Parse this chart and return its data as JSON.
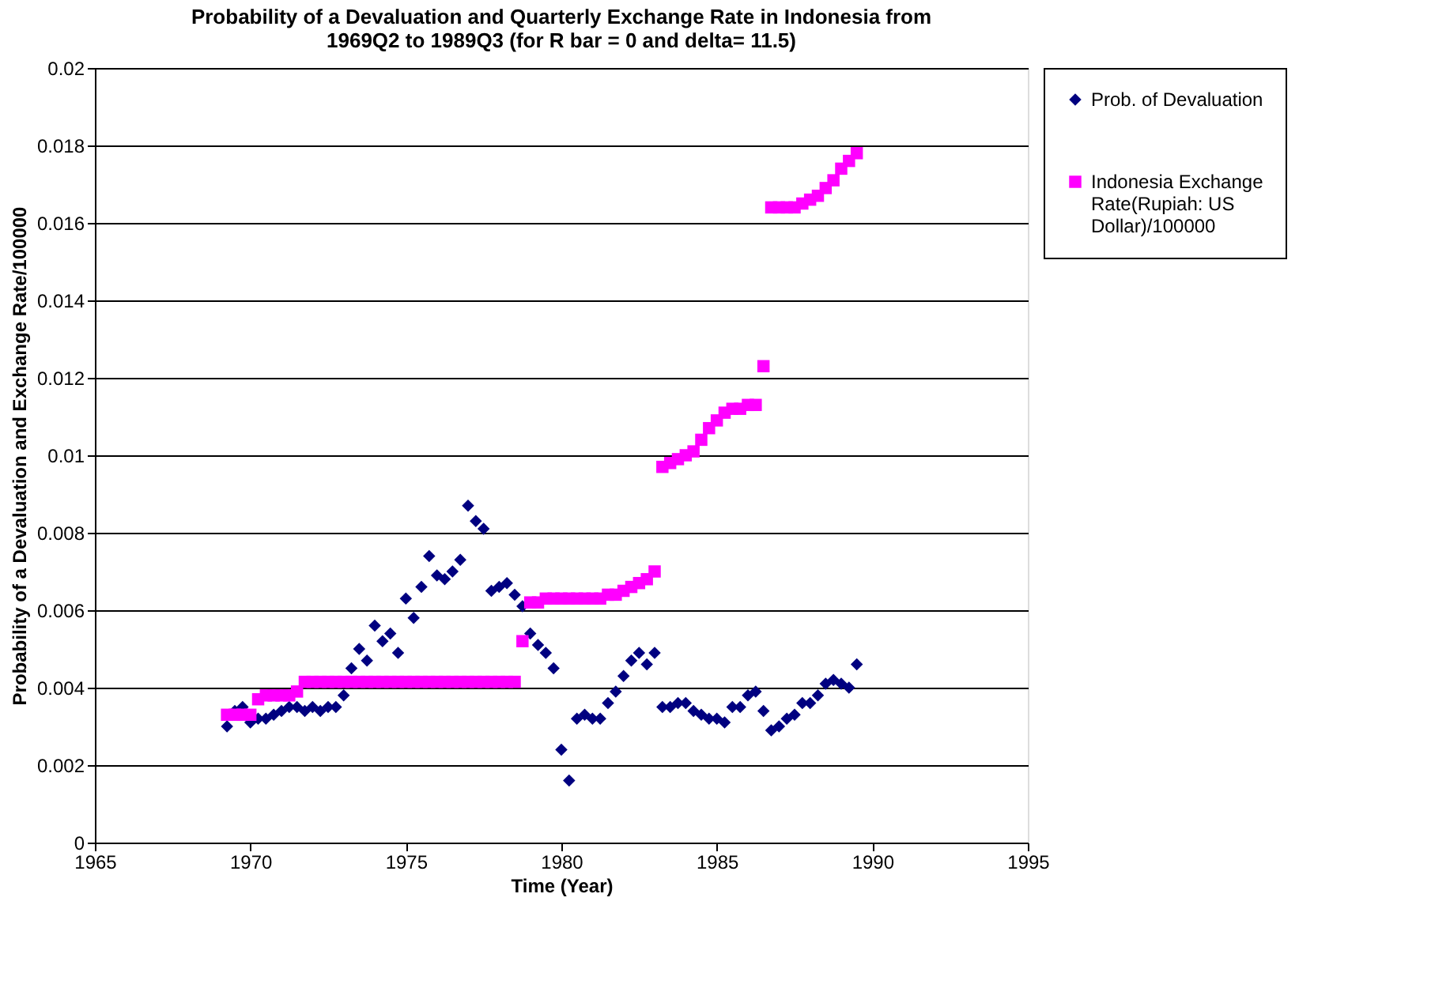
{
  "chart_data": {
    "type": "scatter",
    "title": "Probability of a Devaluation and Quarterly Exchange Rate in Indonesia from 1969Q2 to 1989Q3 (for R bar = 0 and delta= 11.5)",
    "xlabel": "Time (Year)",
    "ylabel": "Probability of a Devaluation and Exchange Rate/100000",
    "x": [
      1969.25,
      1969.5,
      1969.75,
      1970,
      1970.25,
      1970.5,
      1970.75,
      1971,
      1971.25,
      1971.5,
      1971.75,
      1972,
      1972.25,
      1972.5,
      1972.75,
      1973,
      1973.25,
      1973.5,
      1973.75,
      1974,
      1974.25,
      1974.5,
      1974.75,
      1975,
      1975.25,
      1975.5,
      1975.75,
      1976,
      1976.25,
      1976.5,
      1976.75,
      1977,
      1977.25,
      1977.5,
      1977.75,
      1978,
      1978.25,
      1978.5,
      1978.75,
      1979,
      1979.25,
      1979.5,
      1979.75,
      1980,
      1980.25,
      1980.5,
      1980.75,
      1981,
      1981.25,
      1981.5,
      1981.75,
      1982,
      1982.25,
      1982.5,
      1982.75,
      1983,
      1983.25,
      1983.5,
      1983.75,
      1984,
      1984.25,
      1984.5,
      1984.75,
      1985,
      1985.25,
      1985.5,
      1985.75,
      1986,
      1986.25,
      1986.5,
      1986.75,
      1987,
      1987.25,
      1987.5,
      1987.75,
      1988,
      1988.25,
      1988.5,
      1988.75,
      1989,
      1989.25,
      1989.5
    ],
    "series": [
      {
        "name": "Prob. of Devaluation",
        "color": "#000080",
        "marker": "diamond",
        "values": [
          0.003,
          0.0034,
          0.0035,
          0.0031,
          0.0032,
          0.0032,
          0.0033,
          0.0034,
          0.0035,
          0.0035,
          0.0034,
          0.0035,
          0.0034,
          0.0035,
          0.0035,
          0.0038,
          0.0045,
          0.005,
          0.0047,
          0.0056,
          0.0052,
          0.0054,
          0.0049,
          0.0063,
          0.0058,
          0.0066,
          0.0074,
          0.0069,
          0.0068,
          0.007,
          0.0073,
          0.0087,
          0.0083,
          0.0081,
          0.0065,
          0.0066,
          0.0067,
          0.0064,
          0.0061,
          0.0054,
          0.0051,
          0.0049,
          0.0045,
          0.0024,
          0.0016,
          0.0032,
          0.0033,
          0.0032,
          0.0032,
          0.0036,
          0.0039,
          0.0043,
          0.0047,
          0.0049,
          0.0046,
          0.0049,
          0.0035,
          0.0035,
          0.0036,
          0.0036,
          0.0034,
          0.0033,
          0.0032,
          0.0032,
          0.0031,
          0.0035,
          0.0035,
          0.0038,
          0.0039,
          0.0034,
          0.0029,
          0.003,
          0.0032,
          0.0033,
          0.0036,
          0.0036,
          0.0038,
          0.0041,
          0.0042,
          0.0041,
          0.004,
          0.0046
        ]
      },
      {
        "name": "Indonesia Exchange Rate(Rupiah: US Dollar)/100000",
        "color": "#ff00ff",
        "marker": "square",
        "values": [
          0.0033,
          0.0033,
          0.0033,
          0.0033,
          0.0037,
          0.0038,
          0.0038,
          0.0038,
          0.0038,
          0.0039,
          0.00415,
          0.00415,
          0.00415,
          0.00415,
          0.00415,
          0.00415,
          0.00415,
          0.00415,
          0.00415,
          0.00415,
          0.00415,
          0.00415,
          0.00415,
          0.00415,
          0.00415,
          0.00415,
          0.00415,
          0.00415,
          0.00415,
          0.00415,
          0.00415,
          0.00415,
          0.00415,
          0.00415,
          0.00415,
          0.00415,
          0.00415,
          0.00415,
          0.0052,
          0.0062,
          0.0062,
          0.0063,
          0.0063,
          0.0063,
          0.0063,
          0.0063,
          0.0063,
          0.0063,
          0.0063,
          0.0064,
          0.0064,
          0.0065,
          0.0066,
          0.0067,
          0.0068,
          0.007,
          0.0097,
          0.0098,
          0.0099,
          0.01,
          0.0101,
          0.0104,
          0.0107,
          0.0109,
          0.0111,
          0.0112,
          0.0112,
          0.0113,
          0.0113,
          0.0123,
          0.0164,
          0.0164,
          0.0164,
          0.0164,
          0.0165,
          0.0166,
          0.0167,
          0.0169,
          0.0171,
          0.0174,
          0.0176,
          0.0178
        ]
      }
    ],
    "xlim": [
      1965,
      1995
    ],
    "xticks": [
      1965,
      1970,
      1975,
      1980,
      1985,
      1990,
      1995
    ],
    "ylim": [
      0,
      0.02
    ],
    "yticks": [
      0,
      0.002,
      0.004,
      0.006,
      0.008,
      0.01,
      0.012,
      0.014,
      0.016,
      0.018,
      0.02
    ],
    "grid": "y",
    "legend": "right"
  }
}
